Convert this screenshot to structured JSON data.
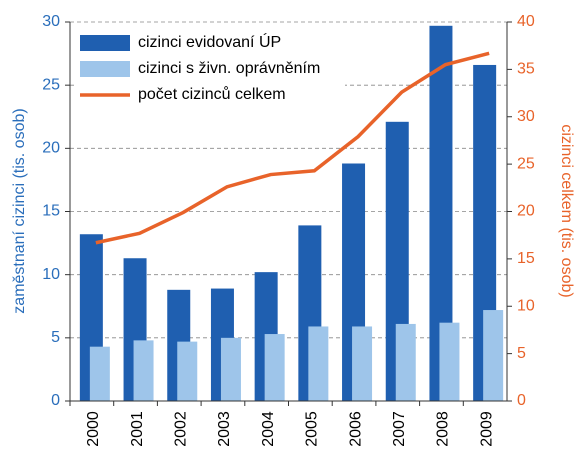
{
  "chart_data": {
    "type": "bar",
    "categories": [
      "2000",
      "2001",
      "2002",
      "2003",
      "2004",
      "2005",
      "2006",
      "2007",
      "2008",
      "2009"
    ],
    "series": [
      {
        "name": "cizinci evidovaní ÚP",
        "color": "#1f5fb0",
        "values": [
          13.2,
          11.3,
          8.8,
          8.9,
          10.2,
          13.9,
          18.8,
          22.1,
          29.7,
          26.6
        ]
      },
      {
        "name": "cizinci s živn. oprávněním",
        "color": "#9ec5ea",
        "values": [
          4.3,
          4.8,
          4.7,
          5.0,
          5.3,
          5.9,
          5.9,
          6.1,
          6.2,
          7.2
        ]
      },
      {
        "name": "počet cizinců celkem",
        "color": "#e8632a",
        "type": "line",
        "axis": "y2",
        "values": [
          16.7,
          17.7,
          19.9,
          22.6,
          23.9,
          24.3,
          27.9,
          32.6,
          35.5,
          36.7
        ]
      }
    ],
    "ylabel": "zaměstnaní cizinci (tis. osob)",
    "y2label": "cizinci celkem (tis. osob)",
    "ylim": [
      0,
      30
    ],
    "yticks": [
      0,
      5,
      10,
      15,
      20,
      25,
      30
    ],
    "y2lim": [
      0,
      40
    ],
    "y2ticks": [
      0,
      5,
      10,
      15,
      20,
      25,
      30,
      35,
      40
    ],
    "grid": true,
    "legend": "upper left"
  }
}
